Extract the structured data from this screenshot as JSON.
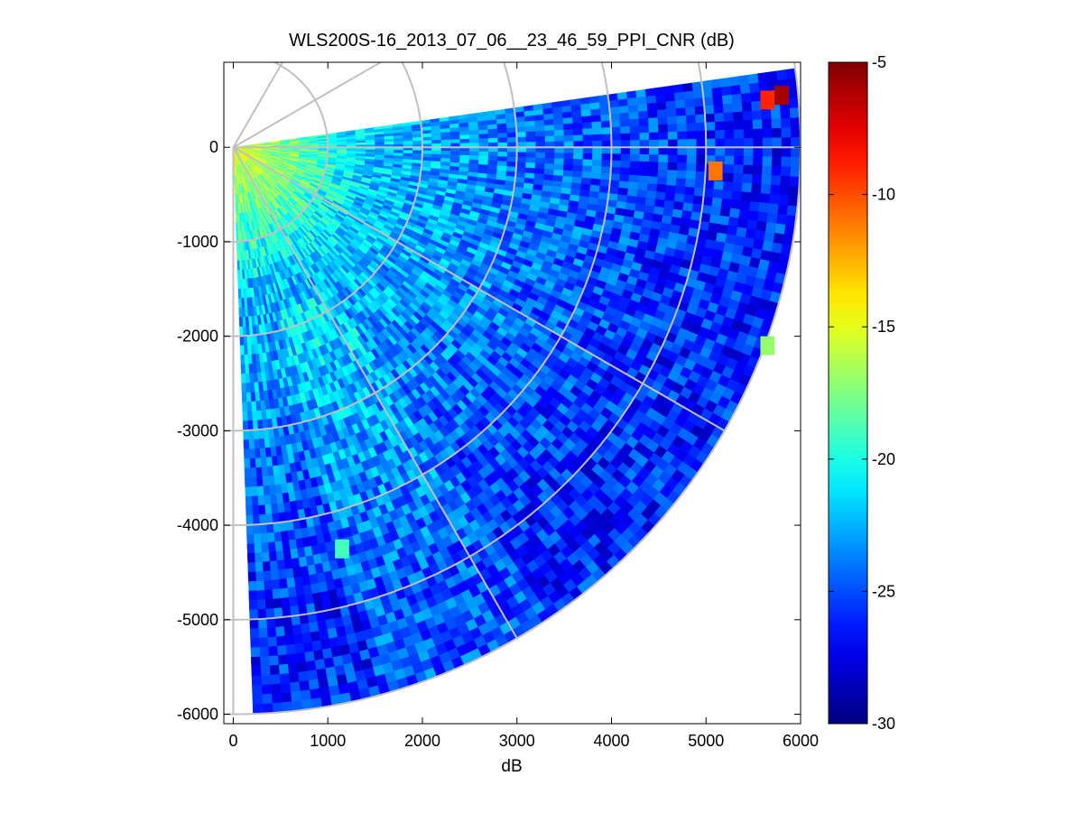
{
  "chart_data": {
    "type": "heatmap",
    "subtype": "polar-ppi-sector",
    "title": "WLS200S-16_2013_07_06__23_46_59_PPI_CNR (dB)",
    "xlabel": "dB",
    "ylabel": "",
    "xlim": [
      -100,
      6000
    ],
    "ylim": [
      -6100,
      900
    ],
    "x_ticks": [
      0,
      1000,
      2000,
      3000,
      4000,
      5000,
      6000
    ],
    "y_ticks": [
      0,
      -1000,
      -2000,
      -3000,
      -4000,
      -5000,
      -6000
    ],
    "x_tick_labels": [
      "0",
      "1000",
      "2000",
      "3000",
      "4000",
      "5000",
      "6000"
    ],
    "y_tick_labels": [
      "0",
      "-1000",
      "-2000",
      "-3000",
      "-4000",
      "-5000",
      "-6000"
    ],
    "colorbar": {
      "colormap": "jet",
      "range": [
        -30,
        -5
      ],
      "ticks": [
        -5,
        -10,
        -15,
        -20,
        -25,
        -30
      ],
      "tick_labels": [
        "-5",
        "-10",
        "-15",
        "-20",
        "-25",
        "-30"
      ]
    },
    "sector": {
      "max_range": 6000,
      "azimuth_start_deg": 8,
      "azimuth_end_deg": -88,
      "range_gate": 100,
      "azimuth_step_deg": 1
    },
    "polar_grid": {
      "range_rings": [
        1000,
        2000,
        3000,
        4000,
        5000,
        6000
      ],
      "spoke_angles_deg": [
        0,
        30,
        60,
        -30,
        -60,
        -90
      ],
      "grid_color": "#c0c0c0"
    },
    "cnr_profile": {
      "near_value": -15,
      "mid_value": -22,
      "far_value": -26
    },
    "hotspots": [
      {
        "x": 5650,
        "y": 500,
        "value": -9
      },
      {
        "x": 5800,
        "y": 550,
        "value": -6
      },
      {
        "x": 5100,
        "y": -250,
        "value": -11
      },
      {
        "x": 5650,
        "y": -2100,
        "value": -17
      },
      {
        "x": 1150,
        "y": -4250,
        "value": -19
      }
    ]
  }
}
